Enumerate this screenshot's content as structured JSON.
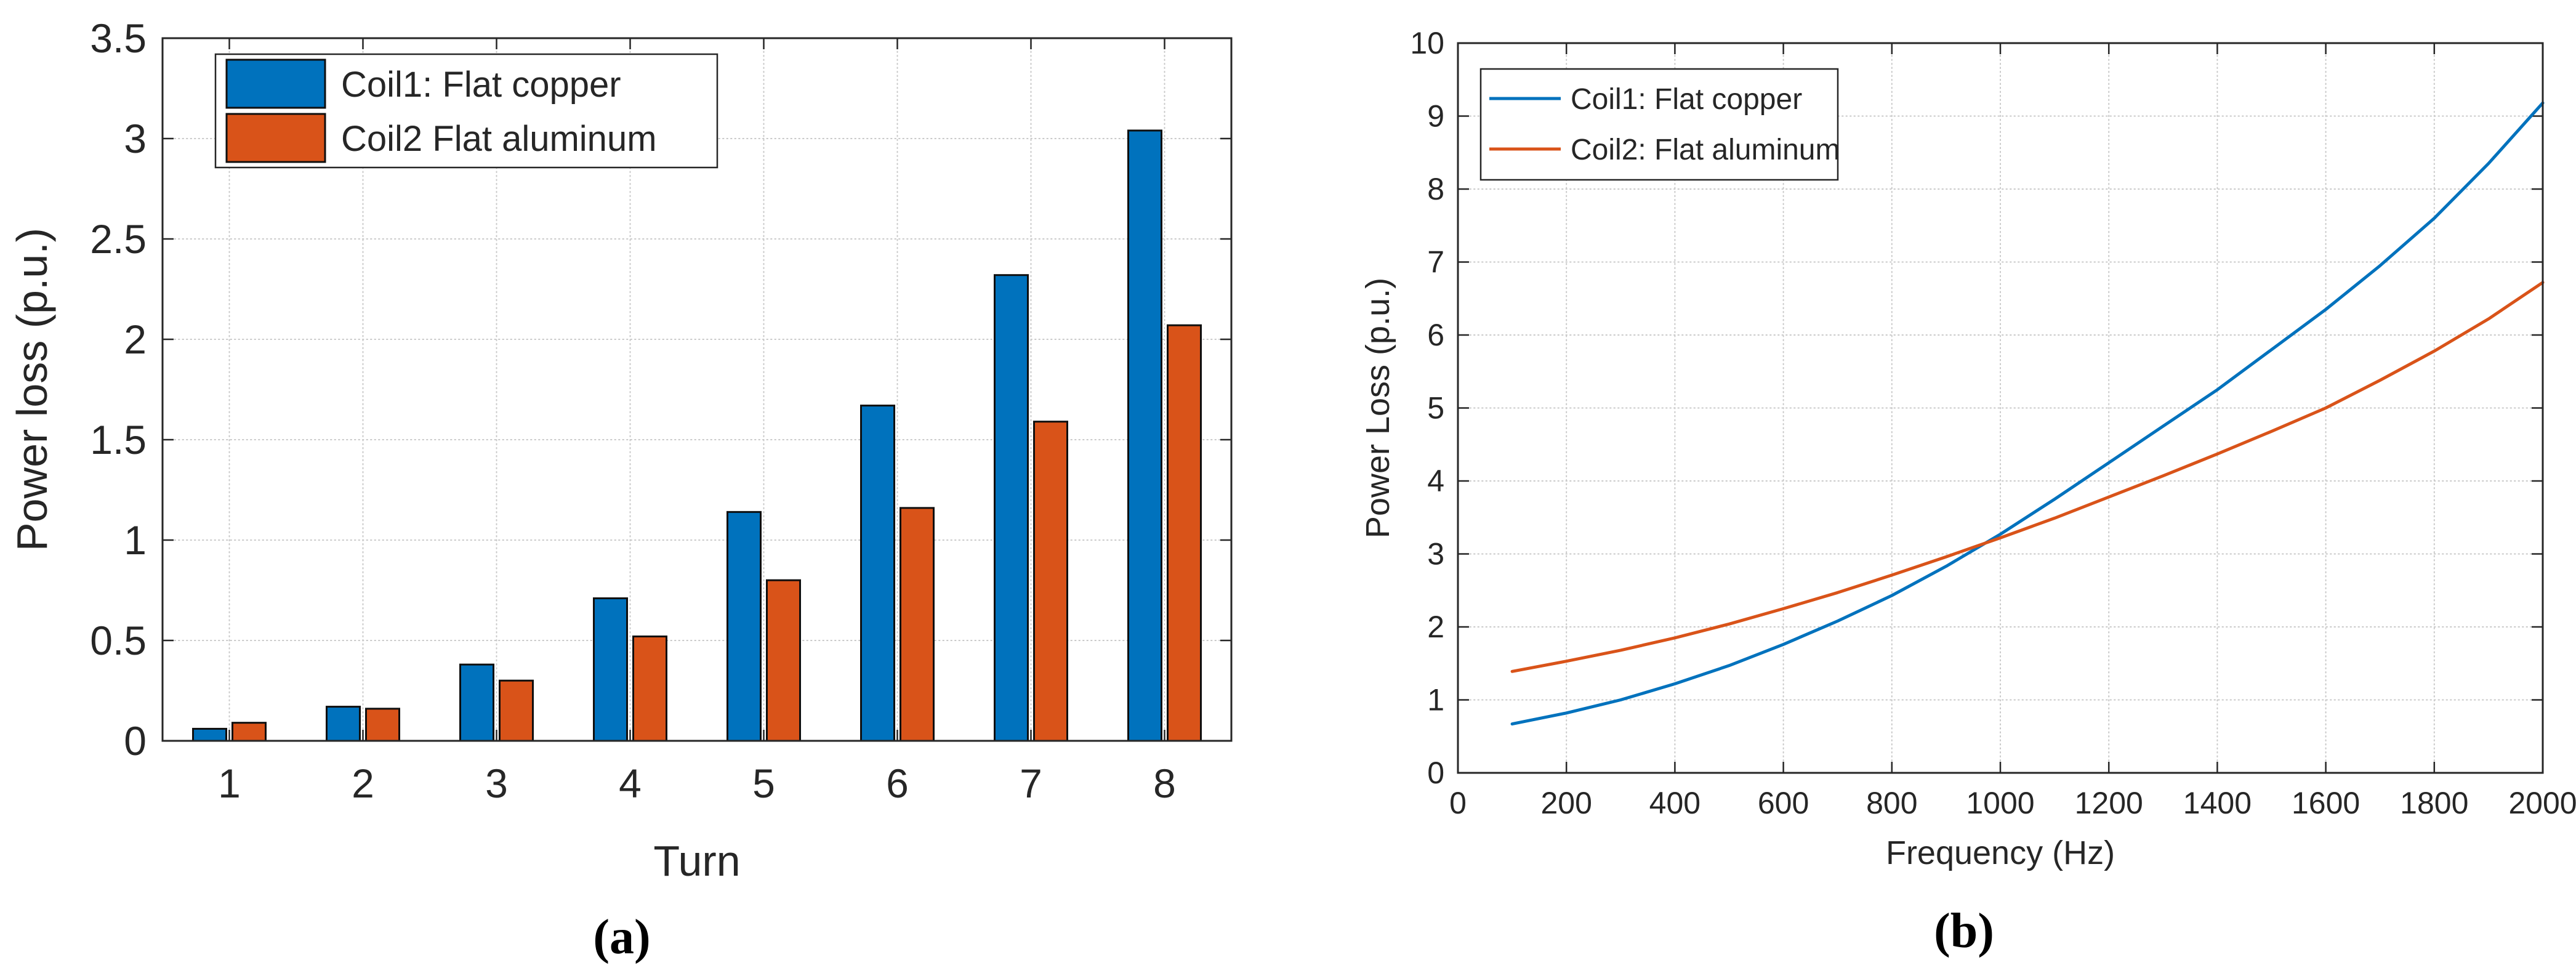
{
  "figure": {
    "caption_a": "(a)",
    "caption_b": "(b)"
  },
  "colors": {
    "coil1": "#0072BD",
    "coil2": "#D95319",
    "axis": "#262626",
    "grid": "#c9c9c9",
    "bar_edge": "#0f0f0f",
    "background": "#ffffff"
  },
  "chart_data": [
    {
      "id": "bar_chart_a",
      "type": "bar",
      "xlabel": "Turn",
      "ylabel": "Power loss (p.u.)",
      "categories": [
        "1",
        "2",
        "3",
        "4",
        "5",
        "6",
        "7",
        "8"
      ],
      "series": [
        {
          "name": "Coil1: Flat copper",
          "color_key": "coil1",
          "values": [
            0.06,
            0.17,
            0.38,
            0.71,
            1.14,
            1.67,
            2.32,
            3.04
          ]
        },
        {
          "name": "Coil2 Flat aluminum",
          "color_key": "coil2",
          "values": [
            0.09,
            0.16,
            0.3,
            0.52,
            0.8,
            1.16,
            1.59,
            2.07
          ]
        }
      ],
      "ylim": [
        0,
        3.5
      ],
      "yticks": {
        "values": [
          0,
          0.5,
          1,
          1.5,
          2,
          2.5,
          3,
          3.5
        ],
        "labels": [
          "0",
          "0.5",
          "1",
          "1.5",
          "2",
          "2.5",
          "3",
          "3.5"
        ]
      },
      "grid": true,
      "legend_position": "top-left"
    },
    {
      "id": "line_chart_b",
      "type": "line",
      "xlabel": "Frequency (Hz)",
      "ylabel": "Power Loss (p.u.)",
      "x": [
        100,
        200,
        300,
        400,
        500,
        600,
        700,
        800,
        900,
        1000,
        1100,
        1200,
        1300,
        1400,
        1500,
        1600,
        1700,
        1800,
        1900,
        2000
      ],
      "series": [
        {
          "name": "Coil1: Flat copper",
          "color_key": "coil1",
          "values": [
            0.67,
            0.82,
            1.0,
            1.22,
            1.47,
            1.76,
            2.08,
            2.43,
            2.83,
            3.27,
            3.75,
            4.25,
            4.75,
            5.25,
            5.8,
            6.35,
            6.95,
            7.6,
            8.35,
            9.18
          ]
        },
        {
          "name": "Coil2: Flat aluminum",
          "color_key": "coil2",
          "values": [
            1.39,
            1.53,
            1.68,
            1.85,
            2.04,
            2.25,
            2.47,
            2.71,
            2.96,
            3.22,
            3.49,
            3.78,
            4.07,
            4.37,
            4.68,
            5.0,
            5.38,
            5.78,
            6.22,
            6.72
          ]
        }
      ],
      "xlim": [
        0,
        2000
      ],
      "ylim": [
        0,
        10
      ],
      "xticks": {
        "values": [
          0,
          200,
          400,
          600,
          800,
          1000,
          1200,
          1400,
          1600,
          1800,
          2000
        ],
        "labels": [
          "0",
          "200",
          "400",
          "600",
          "800",
          "1000",
          "1200",
          "1400",
          "1600",
          "1800",
          "2000"
        ]
      },
      "yticks": {
        "values": [
          0,
          1,
          2,
          3,
          4,
          5,
          6,
          7,
          8,
          9,
          10
        ],
        "labels": [
          "0",
          "1",
          "2",
          "3",
          "4",
          "5",
          "6",
          "7",
          "8",
          "9",
          "10"
        ]
      },
      "grid": true,
      "legend_position": "top-left"
    }
  ]
}
